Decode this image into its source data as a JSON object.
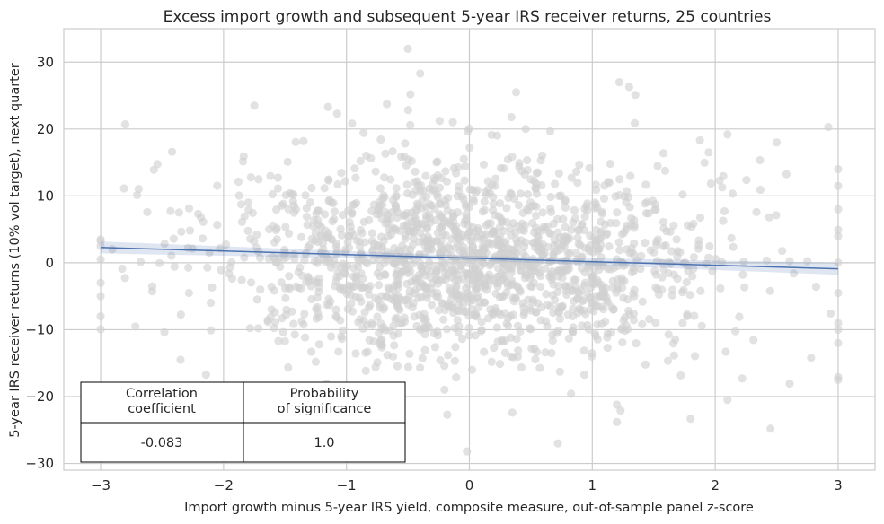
{
  "chart_data": {
    "type": "scatter",
    "title": "Excess import growth and subsequent 5-year IRS receiver returns, 25 countries",
    "xlabel": "Import growth minus 5-year IRS yield, composite measure, out-of-sample panel z-score",
    "ylabel": "5-year IRS receiver returns (10% vol target), next quarter",
    "xlim": [
      -3.3,
      3.3
    ],
    "ylim": [
      -31,
      35
    ],
    "x_ticks": [
      -3,
      -2,
      -1,
      0,
      1,
      2,
      3
    ],
    "y_ticks": [
      -30,
      -20,
      -10,
      0,
      10,
      20,
      30
    ],
    "x_tick_labels": [
      "−3",
      "−2",
      "−1",
      "0",
      "1",
      "2",
      "3"
    ],
    "y_tick_labels": [
      "−30",
      "−20",
      "−10",
      "0",
      "10",
      "20",
      "30"
    ],
    "grid": true,
    "point_color": "#d0d0d0",
    "line_color": "#4c72b0",
    "regression": {
      "x": [
        -3,
        3
      ],
      "y": [
        2.3,
        -0.9
      ]
    },
    "points_sampled": {
      "count": 1700,
      "x_mean": 0,
      "x_sd": 1.0,
      "y_mean": 0.6,
      "y_sd": 7.5
    },
    "points_notable": [
      {
        "x": -0.5,
        "y": 32
      },
      {
        "x": -0.4,
        "y": 28.3
      },
      {
        "x": 1.22,
        "y": 27
      },
      {
        "x": 1.3,
        "y": 26.3
      },
      {
        "x": 0.38,
        "y": 25.5
      },
      {
        "x": -0.48,
        "y": 25.2
      },
      {
        "x": 1.35,
        "y": 25.1
      },
      {
        "x": -1.75,
        "y": 23.5
      },
      {
        "x": -1.15,
        "y": 23.3
      },
      {
        "x": 2.92,
        "y": 20.3
      },
      {
        "x": -2.8,
        "y": 20.7
      },
      {
        "x": 2.1,
        "y": 19.2
      },
      {
        "x": 2.5,
        "y": 18
      },
      {
        "x": -1.35,
        "y": 18.2
      },
      {
        "x": 2.45,
        "y": -24.8
      },
      {
        "x": 0.72,
        "y": -27
      },
      {
        "x": -0.02,
        "y": -28.2
      },
      {
        "x": 1.2,
        "y": -21.2
      },
      {
        "x": 2.1,
        "y": -20.5
      },
      {
        "x": 1.8,
        "y": -23.3
      },
      {
        "x": 1.2,
        "y": -23.8
      },
      {
        "x": 0.35,
        "y": -22.4
      },
      {
        "x": -0.18,
        "y": -22.7
      },
      {
        "x": 1.23,
        "y": -22.1
      },
      {
        "x": 2.78,
        "y": -14.2
      },
      {
        "x": 2.22,
        "y": -17.3
      },
      {
        "x": 3.0,
        "y": -17.5
      },
      {
        "x": 3.0,
        "y": -17.1
      },
      {
        "x": 3.0,
        "y": -12
      },
      {
        "x": 3.0,
        "y": -9
      },
      {
        "x": 3.0,
        "y": -4.5
      },
      {
        "x": 3.0,
        "y": 4
      },
      {
        "x": 3.0,
        "y": 8
      },
      {
        "x": 3.0,
        "y": 11.5
      },
      {
        "x": 3.0,
        "y": 14
      },
      {
        "x": -3.0,
        "y": -8
      },
      {
        "x": -3.0,
        "y": -5
      },
      {
        "x": -3.0,
        "y": -3
      },
      {
        "x": -3.0,
        "y": 0.5
      },
      {
        "x": -3.0,
        "y": 2.5
      },
      {
        "x": -3.0,
        "y": 3.5
      },
      {
        "x": -2.35,
        "y": -14.5
      },
      {
        "x": -1.25,
        "y": -14.8
      }
    ],
    "stats_table": {
      "headers": [
        "Correlation\ncoefficient",
        "Probability\nof significance"
      ],
      "values": [
        "-0.083",
        "1.0"
      ]
    }
  }
}
